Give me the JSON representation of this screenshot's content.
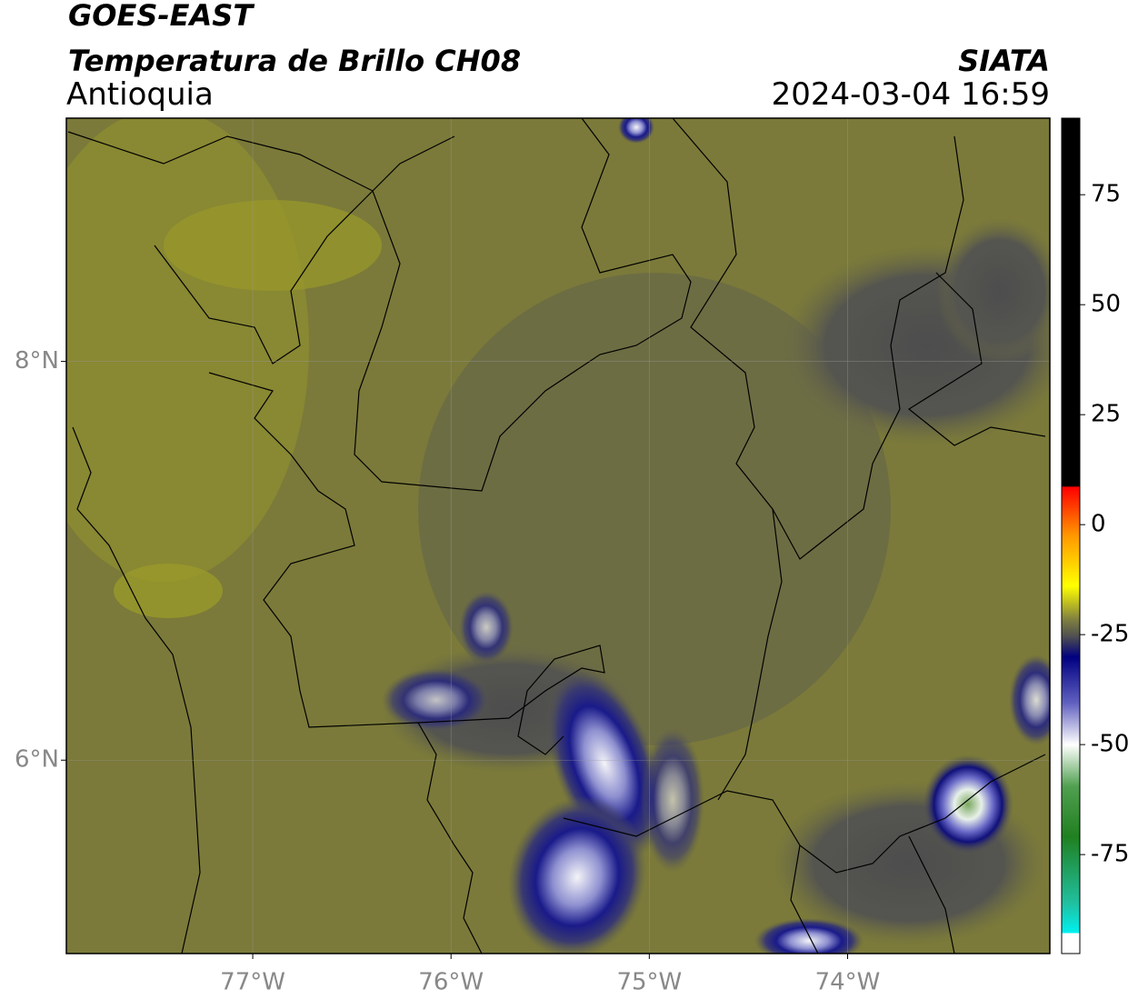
{
  "header": {
    "title": "GOES-EAST",
    "subtitle": "Temperatura de Brillo CH08",
    "region": "Antioquia",
    "source": "SIATA",
    "datetime": "2024-03-04 16:59"
  },
  "map": {
    "xlim": [
      -77.94,
      -72.98
    ],
    "ylim": [
      5.03,
      9.22
    ],
    "xticks": [
      {
        "value": -77,
        "label": "77°W"
      },
      {
        "value": -76,
        "label": "76°W"
      },
      {
        "value": -75,
        "label": "75°W"
      },
      {
        "value": -74,
        "label": "74°W"
      }
    ],
    "yticks": [
      {
        "value": 6,
        "label": "6°N"
      },
      {
        "value": 8,
        "label": "8°N"
      }
    ]
  },
  "colorbar": {
    "ylim": [
      -97.5,
      92.4
    ],
    "yticks": [
      75,
      50,
      25,
      0,
      -25,
      -50,
      -75
    ]
  }
}
